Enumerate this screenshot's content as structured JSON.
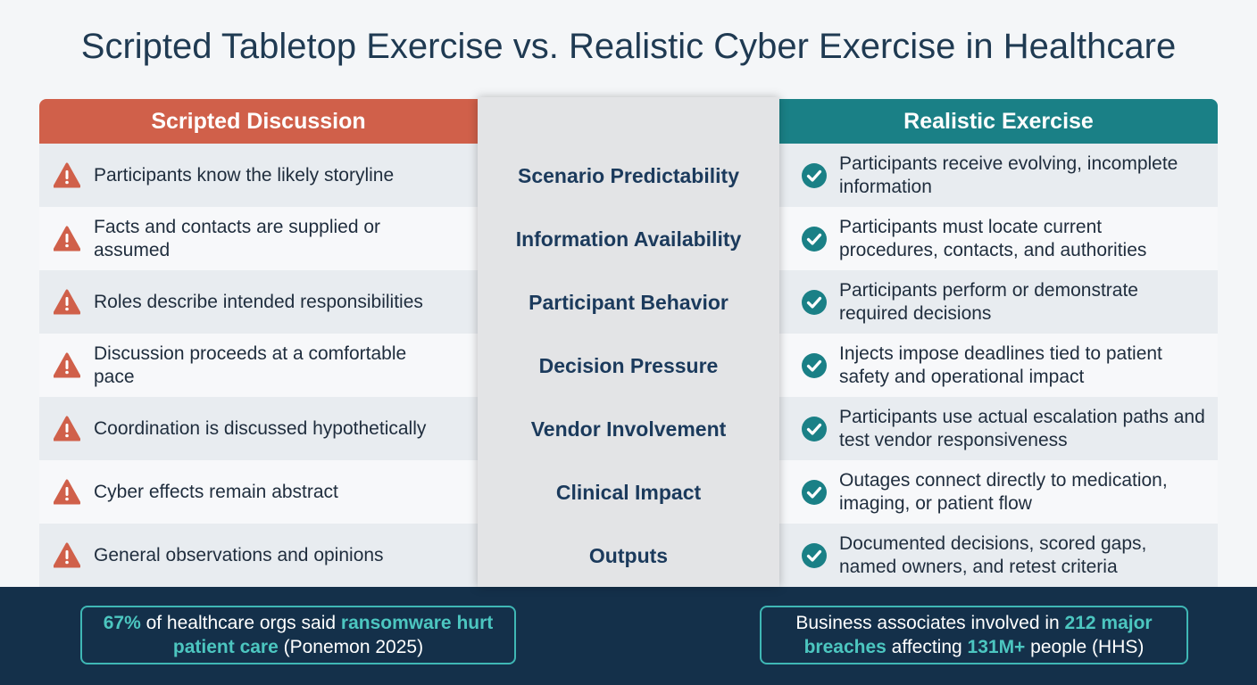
{
  "title": "Scripted Tabletop Exercise vs. Realistic Cyber Exercise in Healthcare",
  "table": {
    "headers": [
      "Scripted Discussion",
      "Realistic Exercise"
    ],
    "rows": [
      [
        "Participants know the likely storyline",
        "Scenario Predictability",
        "Participants receive evolving, incomplete information"
      ],
      [
        "Facts and contacts are supplied or assumed",
        "Information Availability",
        "Participants must locate current procedures, contacts, and authorities"
      ],
      [
        "Roles describe intended responsibilities",
        "Participant Behavior",
        "Participants perform or demonstrate required decisions"
      ],
      [
        "Discussion proceeds at a comfortable pace",
        "Decision Pressure",
        "Injects impose deadlines tied to patient safety and operational impact"
      ],
      [
        "Coordination is discussed hypothetically",
        "Vendor Involvement",
        "Participants use actual escalation paths and test vendor responsiveness"
      ],
      [
        "Cyber effects remain abstract",
        "Clinical Impact",
        "Outages connect directly to medication, imaging, or patient flow"
      ],
      [
        "General observations and opinions",
        "Outputs",
        "Documented decisions, scored gaps, named owners, and retest criteria"
      ]
    ]
  },
  "footer": {
    "callouts": [
      {
        "segments": [
          {
            "text": "67%",
            "emphasis": true
          },
          {
            "text": " of healthcare orgs said ",
            "emphasis": false
          },
          {
            "text": "ransomware hurt patient care",
            "emphasis": true
          },
          {
            "text": " (Ponemon 2025)",
            "emphasis": false
          }
        ]
      },
      {
        "segments": [
          {
            "text": "Business associates involved in ",
            "emphasis": false
          },
          {
            "text": "212 major breaches",
            "emphasis": true
          },
          {
            "text": " affecting ",
            "emphasis": false
          },
          {
            "text": "131M+",
            "emphasis": true
          },
          {
            "text": " people (HHS)",
            "emphasis": false
          }
        ]
      }
    ]
  }
}
